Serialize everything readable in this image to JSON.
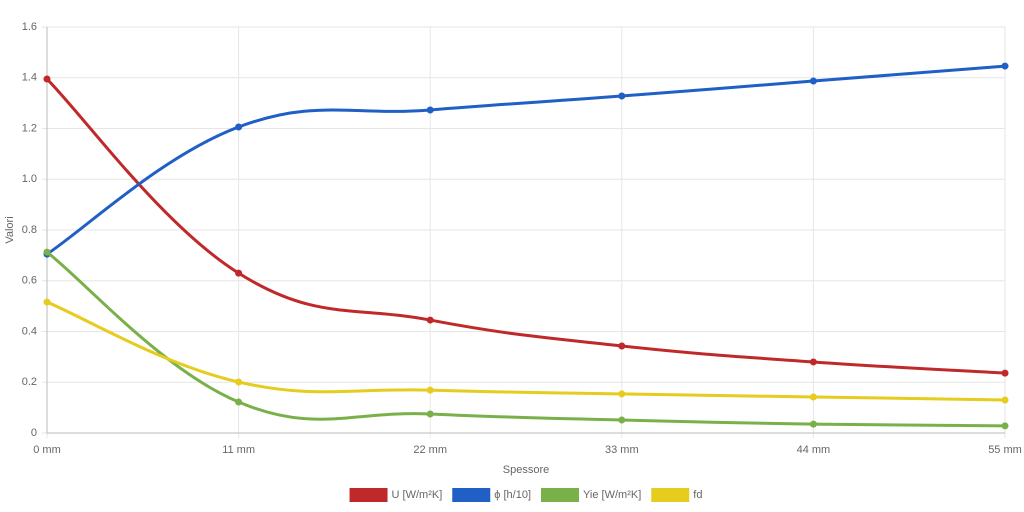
{
  "chart_data": {
    "type": "line",
    "title": null,
    "x_label": "Spessore",
    "y_label": "Valori",
    "categories": [
      "0 mm",
      "11 mm",
      "22 mm",
      "33 mm",
      "44 mm",
      "55 mm"
    ],
    "series": [
      {
        "name": "U [W/m²K]",
        "color": "#c0292a",
        "values": [
          1.395,
          0.63,
          0.445,
          0.343,
          0.28,
          0.236
        ]
      },
      {
        "name": "ϕ [h/10]",
        "color": "#1f5fc6",
        "values": [
          0.705,
          1.206,
          1.273,
          1.328,
          1.387,
          1.446
        ]
      },
      {
        "name": "Yie [W/m²K]",
        "color": "#7ab04a",
        "values": [
          0.713,
          0.122,
          0.075,
          0.051,
          0.035,
          0.028
        ]
      },
      {
        "name": "fd",
        "color": "#e6cc1e",
        "values": [
          0.516,
          0.201,
          0.169,
          0.154,
          0.142,
          0.13
        ]
      }
    ],
    "ylim": [
      0,
      1.6
    ],
    "yticks": [
      0,
      0.2,
      0.4,
      0.6,
      0.8,
      {
        "value": 1,
        "label": "1.0"
      },
      1.2,
      1.4,
      1.6
    ],
    "grid": true,
    "legend": "bottom"
  }
}
